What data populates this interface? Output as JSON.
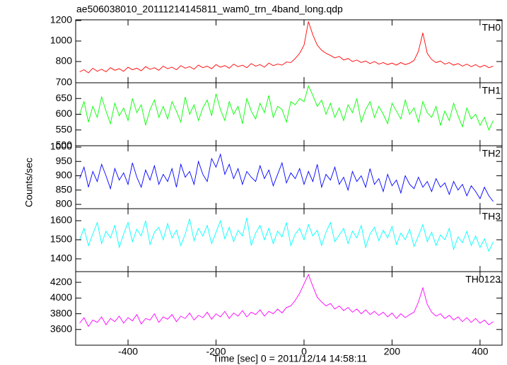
{
  "chart_data": [
    {
      "type": "line",
      "title": "ae506038010_20111214145811_wam0_trn_4band_long.qdp",
      "label": "TH0",
      "color": "#ff0000",
      "x": [
        -510,
        -500,
        -490,
        -480,
        -470,
        -460,
        -450,
        -440,
        -430,
        -420,
        -410,
        -400,
        -390,
        -380,
        -370,
        -360,
        -350,
        -340,
        -330,
        -320,
        -310,
        -300,
        -290,
        -280,
        -270,
        -260,
        -250,
        -240,
        -230,
        -220,
        -210,
        -200,
        -190,
        -180,
        -170,
        -160,
        -150,
        -140,
        -130,
        -120,
        -110,
        -100,
        -90,
        -80,
        -70,
        -60,
        -50,
        -40,
        -30,
        -20,
        -10,
        0,
        10,
        20,
        30,
        40,
        50,
        60,
        70,
        80,
        90,
        100,
        110,
        120,
        130,
        140,
        150,
        160,
        170,
        180,
        190,
        200,
        210,
        220,
        230,
        240,
        250,
        260,
        270,
        280,
        290,
        300,
        310,
        320,
        330,
        340,
        350,
        360,
        370,
        380,
        390,
        400,
        410,
        420,
        430
      ],
      "values": [
        700,
        720,
        690,
        735,
        705,
        725,
        700,
        740,
        715,
        730,
        705,
        745,
        720,
        735,
        710,
        750,
        725,
        740,
        715,
        755,
        730,
        745,
        720,
        760,
        735,
        750,
        725,
        765,
        740,
        755,
        730,
        770,
        745,
        760,
        735,
        775,
        750,
        765,
        740,
        780,
        755,
        770,
        745,
        785,
        760,
        775,
        765,
        795,
        790,
        830,
        880,
        960,
        1190,
        1060,
        960,
        910,
        880,
        860,
        835,
        850,
        815,
        830,
        800,
        815,
        790,
        805,
        780,
        800,
        775,
        790,
        770,
        785,
        765,
        790,
        770,
        785,
        810,
        900,
        1080,
        880,
        820,
        790,
        805,
        775,
        790,
        765,
        780,
        755,
        775,
        750,
        770,
        745,
        765,
        740,
        755
      ],
      "xlim": [
        -519,
        450
      ],
      "ylim": [
        593,
        1207
      ],
      "yticks": [
        800,
        1000,
        1200
      ]
    },
    {
      "type": "line",
      "label": "TH1",
      "color": "#00ff00",
      "x": [
        -510,
        -500,
        -490,
        -480,
        -470,
        -460,
        -450,
        -440,
        -430,
        -420,
        -410,
        -400,
        -390,
        -380,
        -370,
        -360,
        -350,
        -340,
        -330,
        -320,
        -310,
        -300,
        -290,
        -280,
        -270,
        -260,
        -250,
        -240,
        -230,
        -220,
        -210,
        -200,
        -190,
        -180,
        -170,
        -160,
        -150,
        -140,
        -130,
        -120,
        -110,
        -100,
        -90,
        -80,
        -70,
        -60,
        -50,
        -40,
        -30,
        -20,
        -10,
        0,
        10,
        20,
        30,
        40,
        50,
        60,
        70,
        80,
        90,
        100,
        110,
        120,
        130,
        140,
        150,
        160,
        170,
        180,
        190,
        200,
        210,
        220,
        230,
        240,
        250,
        260,
        270,
        280,
        290,
        300,
        310,
        320,
        330,
        340,
        350,
        360,
        370,
        380,
        390,
        400,
        410,
        420,
        430
      ],
      "values": [
        600,
        640,
        575,
        625,
        590,
        655,
        610,
        570,
        635,
        595,
        620,
        580,
        650,
        605,
        630,
        565,
        615,
        645,
        590,
        625,
        585,
        640,
        610,
        575,
        655,
        600,
        630,
        580,
        620,
        645,
        595,
        665,
        615,
        580,
        640,
        600,
        625,
        570,
        650,
        610,
        585,
        635,
        605,
        660,
        590,
        625,
        615,
        575,
        640,
        630,
        650,
        640,
        690,
        660,
        625,
        645,
        600,
        635,
        590,
        620,
        580,
        630,
        605,
        650,
        575,
        615,
        640,
        590,
        625,
        600,
        570,
        635,
        610,
        585,
        645,
        600,
        620,
        575,
        640,
        605,
        590,
        625,
        565,
        610,
        580,
        635,
        595,
        560,
        620,
        585,
        600,
        565,
        590,
        550,
        580
      ],
      "xlim": [
        -519,
        450
      ],
      "ylim": [
        500,
        700
      ],
      "yticks": [
        500,
        550,
        600,
        650,
        700
      ]
    },
    {
      "type": "line",
      "label": "TH2",
      "ylabel": "Counts/sec",
      "color": "#0000ff",
      "x": [
        -510,
        -500,
        -490,
        -480,
        -470,
        -460,
        -450,
        -440,
        -430,
        -420,
        -410,
        -400,
        -390,
        -380,
        -370,
        -360,
        -350,
        -340,
        -330,
        -320,
        -310,
        -300,
        -290,
        -280,
        -270,
        -260,
        -250,
        -240,
        -230,
        -220,
        -210,
        -200,
        -190,
        -180,
        -170,
        -160,
        -150,
        -140,
        -130,
        -120,
        -110,
        -100,
        -90,
        -80,
        -70,
        -60,
        -50,
        -40,
        -30,
        -20,
        -10,
        0,
        10,
        20,
        30,
        40,
        50,
        60,
        70,
        80,
        90,
        100,
        110,
        120,
        130,
        140,
        150,
        160,
        170,
        180,
        190,
        200,
        210,
        220,
        230,
        240,
        250,
        260,
        270,
        280,
        290,
        300,
        310,
        320,
        330,
        340,
        350,
        360,
        370,
        380,
        390,
        400,
        410,
        420,
        430
      ],
      "values": [
        890,
        930,
        860,
        915,
        880,
        940,
        900,
        855,
        925,
        885,
        910,
        870,
        945,
        895,
        860,
        920,
        885,
        935,
        870,
        905,
        880,
        925,
        860,
        940,
        895,
        915,
        870,
        950,
        905,
        880,
        960,
        930,
        975,
        905,
        940,
        890,
        925,
        870,
        915,
        895,
        880,
        935,
        890,
        920,
        865,
        905,
        945,
        875,
        910,
        890,
        925,
        870,
        915,
        880,
        940,
        860,
        905,
        885,
        930,
        870,
        895,
        850,
        915,
        880,
        900,
        860,
        925,
        870,
        890,
        845,
        905,
        865,
        885,
        840,
        900,
        870,
        855,
        895,
        860,
        880,
        845,
        890,
        860,
        875,
        835,
        880,
        850,
        870,
        830,
        865,
        845,
        820,
        860,
        830,
        810
      ],
      "xlim": [
        -519,
        450
      ],
      "ylim": [
        785,
        1005
      ],
      "yticks": [
        800,
        850,
        900,
        950,
        1000
      ]
    },
    {
      "type": "line",
      "label": "TH3",
      "color": "#00ffff",
      "x": [
        -510,
        -500,
        -490,
        -480,
        -470,
        -460,
        -450,
        -440,
        -430,
        -420,
        -410,
        -400,
        -390,
        -380,
        -370,
        -360,
        -350,
        -340,
        -330,
        -320,
        -310,
        -300,
        -290,
        -280,
        -270,
        -260,
        -250,
        -240,
        -230,
        -220,
        -210,
        -200,
        -190,
        -180,
        -170,
        -160,
        -150,
        -140,
        -130,
        -120,
        -110,
        -100,
        -90,
        -80,
        -70,
        -60,
        -50,
        -40,
        -30,
        -20,
        -10,
        0,
        10,
        20,
        30,
        40,
        50,
        60,
        70,
        80,
        90,
        100,
        110,
        120,
        130,
        140,
        150,
        160,
        170,
        180,
        190,
        200,
        210,
        220,
        230,
        240,
        250,
        260,
        270,
        280,
        290,
        300,
        310,
        320,
        330,
        340,
        350,
        360,
        370,
        380,
        390,
        400,
        410,
        420,
        430
      ],
      "values": [
        1500,
        1560,
        1470,
        1530,
        1590,
        1480,
        1545,
        1510,
        1575,
        1460,
        1530,
        1590,
        1490,
        1555,
        1520,
        1600,
        1475,
        1540,
        1565,
        1500,
        1585,
        1510,
        1550,
        1470,
        1530,
        1610,
        1495,
        1560,
        1520,
        1575,
        1480,
        1540,
        1600,
        1505,
        1565,
        1490,
        1550,
        1520,
        1615,
        1470,
        1535,
        1575,
        1500,
        1560,
        1480,
        1545,
        1515,
        1590,
        1470,
        1530,
        1560,
        1500,
        1580,
        1520,
        1550,
        1470,
        1540,
        1590,
        1490,
        1525,
        1560,
        1480,
        1545,
        1510,
        1575,
        1460,
        1530,
        1565,
        1495,
        1550,
        1510,
        1570,
        1475,
        1535,
        1500,
        1555,
        1465,
        1520,
        1580,
        1490,
        1540,
        1470,
        1525,
        1500,
        1560,
        1450,
        1515,
        1485,
        1545,
        1470,
        1520,
        1460,
        1505,
        1440,
        1490
      ],
      "xlim": [
        -519,
        450
      ],
      "ylim": [
        1333,
        1663
      ],
      "yticks": [
        1400,
        1500,
        1600
      ]
    },
    {
      "type": "line",
      "label": "TH0123",
      "xlabel": "Time [sec] 0 = 2011/12/14 14:58:11",
      "color": "#ff00ff",
      "x": [
        -510,
        -500,
        -490,
        -480,
        -470,
        -460,
        -450,
        -440,
        -430,
        -420,
        -410,
        -400,
        -390,
        -380,
        -370,
        -360,
        -350,
        -340,
        -330,
        -320,
        -310,
        -300,
        -290,
        -280,
        -270,
        -260,
        -250,
        -240,
        -230,
        -220,
        -210,
        -200,
        -190,
        -180,
        -170,
        -160,
        -150,
        -140,
        -130,
        -120,
        -110,
        -100,
        -90,
        -80,
        -70,
        -60,
        -50,
        -40,
        -30,
        -20,
        -10,
        0,
        10,
        20,
        30,
        40,
        50,
        60,
        70,
        80,
        90,
        100,
        110,
        120,
        130,
        140,
        150,
        160,
        170,
        180,
        190,
        200,
        210,
        220,
        230,
        240,
        250,
        260,
        270,
        280,
        290,
        300,
        310,
        320,
        330,
        340,
        350,
        360,
        370,
        380,
        390,
        400,
        410,
        420,
        430
      ],
      "values": [
        3680,
        3750,
        3640,
        3720,
        3690,
        3760,
        3660,
        3740,
        3700,
        3770,
        3680,
        3750,
        3710,
        3790,
        3670,
        3740,
        3720,
        3800,
        3690,
        3760,
        3730,
        3790,
        3700,
        3770,
        3740,
        3810,
        3720,
        3780,
        3750,
        3820,
        3730,
        3800,
        3760,
        3830,
        3740,
        3810,
        3770,
        3840,
        3760,
        3820,
        3790,
        3850,
        3770,
        3830,
        3800,
        3860,
        3810,
        3880,
        3900,
        3970,
        4060,
        4180,
        4300,
        4150,
        4010,
        3950,
        3900,
        3930,
        3860,
        3900,
        3840,
        3880,
        3820,
        3860,
        3800,
        3850,
        3790,
        3830,
        3780,
        3820,
        3760,
        3810,
        3740,
        3800,
        3750,
        3790,
        3820,
        3950,
        4130,
        3920,
        3820,
        3770,
        3800,
        3740,
        3780,
        3720,
        3760,
        3700,
        3750,
        3690,
        3740,
        3680,
        3720,
        3660,
        3700
      ],
      "xlim": [
        -519,
        450
      ],
      "ylim": [
        3400,
        4336
      ],
      "yticks": [
        3600,
        3800,
        4000,
        4200
      ],
      "xticks": [
        -400,
        -200,
        0,
        200,
        400
      ]
    }
  ]
}
